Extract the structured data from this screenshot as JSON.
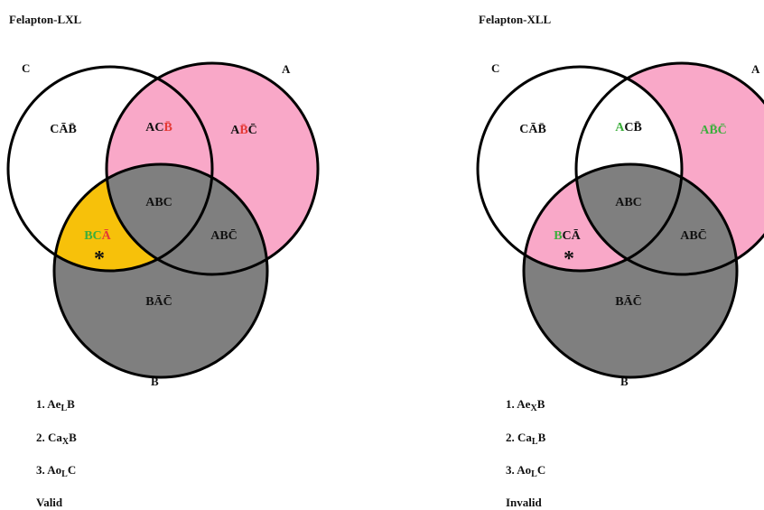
{
  "diagrams": [
    {
      "title": "Felapton-LXL",
      "scheme": "lxl",
      "circle_labels": {
        "C": "C",
        "A": "A",
        "B": "B"
      },
      "regions": [
        {
          "id": "c_only",
          "parts": [
            {
              "text": "CĀB̄",
              "color": "#111111"
            }
          ]
        },
        {
          "id": "ac_notb",
          "parts": [
            {
              "text": "AC",
              "color": "#111111"
            },
            {
              "text": "B̄",
              "color": "#e53935"
            }
          ]
        },
        {
          "id": "a_only",
          "parts": [
            {
              "text": "A",
              "color": "#111111"
            },
            {
              "text": "B̄",
              "color": "#e53935"
            },
            {
              "text": "C̄",
              "color": "#111111"
            }
          ]
        },
        {
          "id": "abc",
          "parts": [
            {
              "text": "ABC",
              "color": "#111111"
            }
          ]
        },
        {
          "id": "bc_nota",
          "parts": [
            {
              "text": "BC",
              "color": "#3cae3c"
            },
            {
              "text": "Ā",
              "color": "#e53935"
            }
          ]
        },
        {
          "id": "ab_notc",
          "parts": [
            {
              "text": "ABC̄",
              "color": "#111111"
            }
          ]
        },
        {
          "id": "b_only",
          "parts": [
            {
              "text": "BĀC̄",
              "color": "#111111"
            }
          ]
        }
      ],
      "marker": "*",
      "premises": [
        {
          "pre": "1. Ae",
          "sub": "L",
          "post": "B"
        },
        {
          "pre": "2. Ca",
          "sub": "X",
          "post": "B"
        },
        {
          "pre": "3. Ao",
          "sub": "L",
          "post": "C"
        }
      ],
      "verdict": "Valid"
    },
    {
      "title": "Felapton-XLL",
      "scheme": "xll",
      "circle_labels": {
        "C": "C",
        "A": "A",
        "B": "B"
      },
      "regions": [
        {
          "id": "c_only",
          "parts": [
            {
              "text": "CĀB̄",
              "color": "#111111"
            }
          ]
        },
        {
          "id": "ac_notb",
          "parts": [
            {
              "text": "A",
              "color": "#3cae3c"
            },
            {
              "text": "CB̄",
              "color": "#111111"
            }
          ]
        },
        {
          "id": "a_only",
          "parts": [
            {
              "text": "AB̄C̄",
              "color": "#3cae3c"
            }
          ]
        },
        {
          "id": "abc",
          "parts": [
            {
              "text": "ABC",
              "color": "#111111"
            }
          ]
        },
        {
          "id": "bc_nota",
          "parts": [
            {
              "text": "B",
              "color": "#3cae3c"
            },
            {
              "text": "CĀ",
              "color": "#111111"
            }
          ]
        },
        {
          "id": "ab_notc",
          "parts": [
            {
              "text": "ABC̄",
              "color": "#111111"
            }
          ]
        },
        {
          "id": "b_only",
          "parts": [
            {
              "text": "BĀC̄",
              "color": "#111111"
            }
          ]
        }
      ],
      "marker": "*",
      "premises": [
        {
          "pre": "1. Ae",
          "sub": "X",
          "post": "B"
        },
        {
          "pre": "2. Ca",
          "sub": "L",
          "post": "B"
        },
        {
          "pre": "3. Ao",
          "sub": "L",
          "post": "C"
        }
      ],
      "verdict": "Invalid"
    }
  ]
}
